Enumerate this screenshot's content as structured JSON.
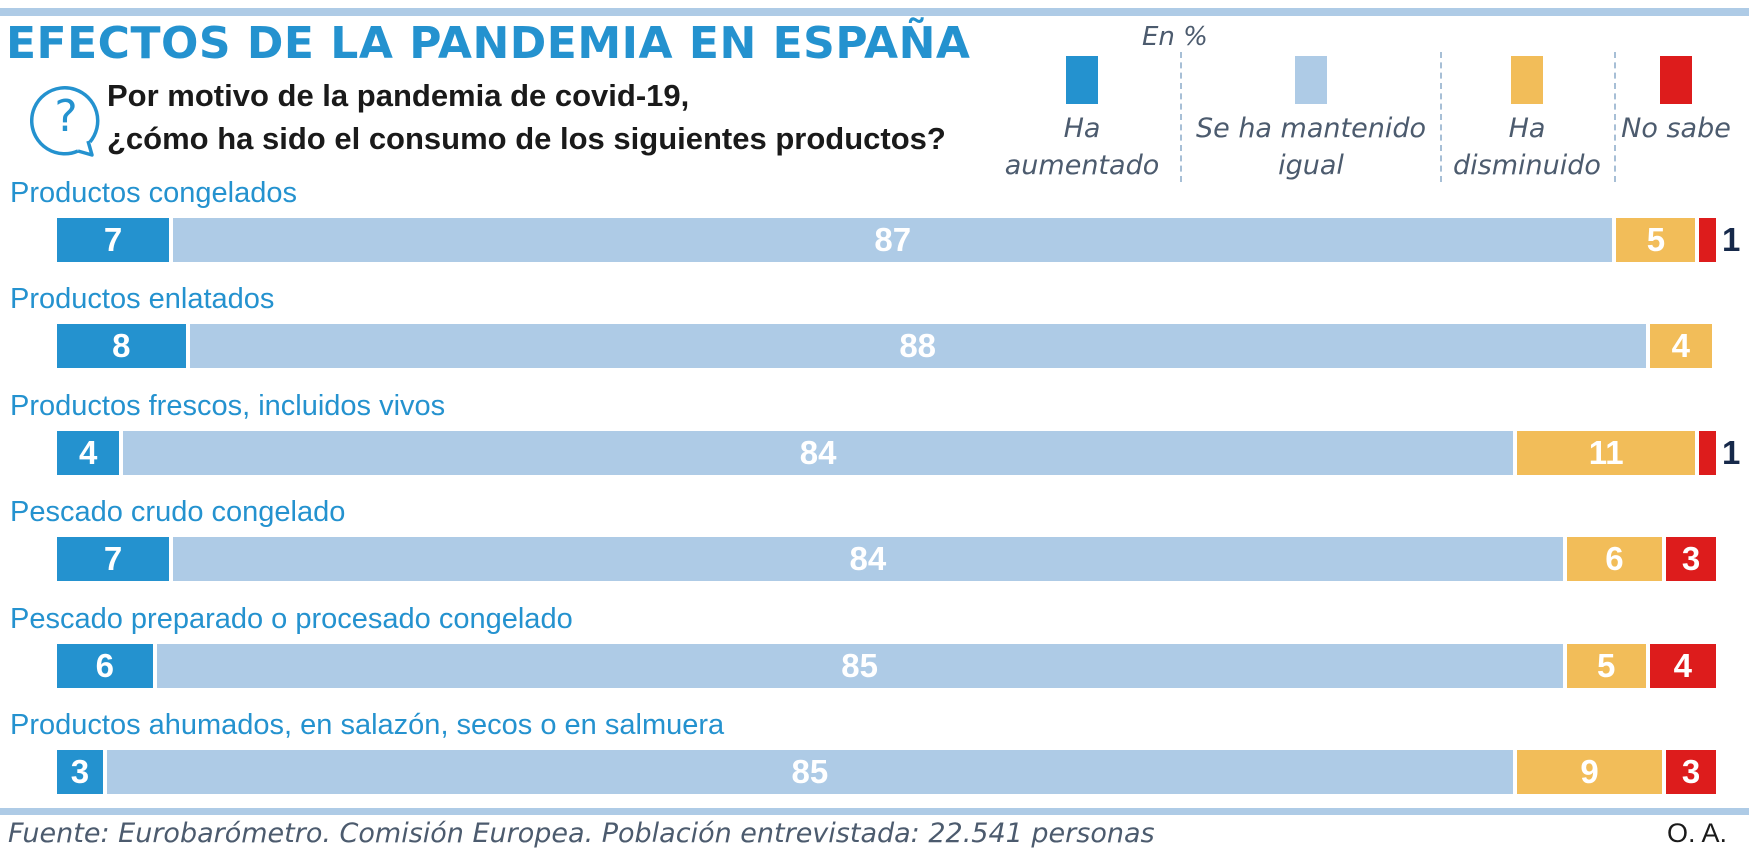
{
  "title": "EFECTOS DE LA PANDEMIA EN ESPAÑA",
  "question": {
    "icon": "question-mark-icon",
    "line1": "Por motivo de la pandemia de covid-19,",
    "line2": "¿cómo ha sido el consumo de los siguientes productos?"
  },
  "unit": "En %",
  "legend": [
    {
      "line1": "Ha",
      "line2": "aumentado",
      "color": "#2492cf"
    },
    {
      "line1": "Se ha mantenido",
      "line2": "igual",
      "color": "#aecbe6"
    },
    {
      "line1": "Ha",
      "line2": "disminuido",
      "color": "#f2bd59"
    },
    {
      "line1": "No sabe",
      "line2": "",
      "color": "#dd1c1c"
    }
  ],
  "chart_data": {
    "type": "bar",
    "orientation": "horizontal",
    "stacked": true,
    "unit": "%",
    "categories": [
      "Productos congelados",
      "Productos enlatados",
      "Productos frescos, incluidos vivos",
      "Pescado crudo congelado",
      "Pescado preparado o procesado congelado",
      "Productos ahumados, en salazón, secos o en salmuera"
    ],
    "series": [
      {
        "name": "Ha aumentado",
        "color": "#2492cf",
        "values": [
          7,
          8,
          4,
          7,
          6,
          3
        ]
      },
      {
        "name": "Se ha mantenido igual",
        "color": "#aecbe6",
        "values": [
          87,
          88,
          84,
          84,
          85,
          85
        ]
      },
      {
        "name": "Ha disminuido",
        "color": "#f2bd59",
        "values": [
          5,
          4,
          11,
          6,
          5,
          9
        ]
      },
      {
        "name": "No sabe",
        "color": "#dd1c1c",
        "values": [
          1,
          0,
          1,
          3,
          4,
          3
        ]
      }
    ]
  },
  "source": "Fuente: Eurobarómetro. Comisión Europea. Población entrevistada: 22.541 personas",
  "credit": "O. A."
}
